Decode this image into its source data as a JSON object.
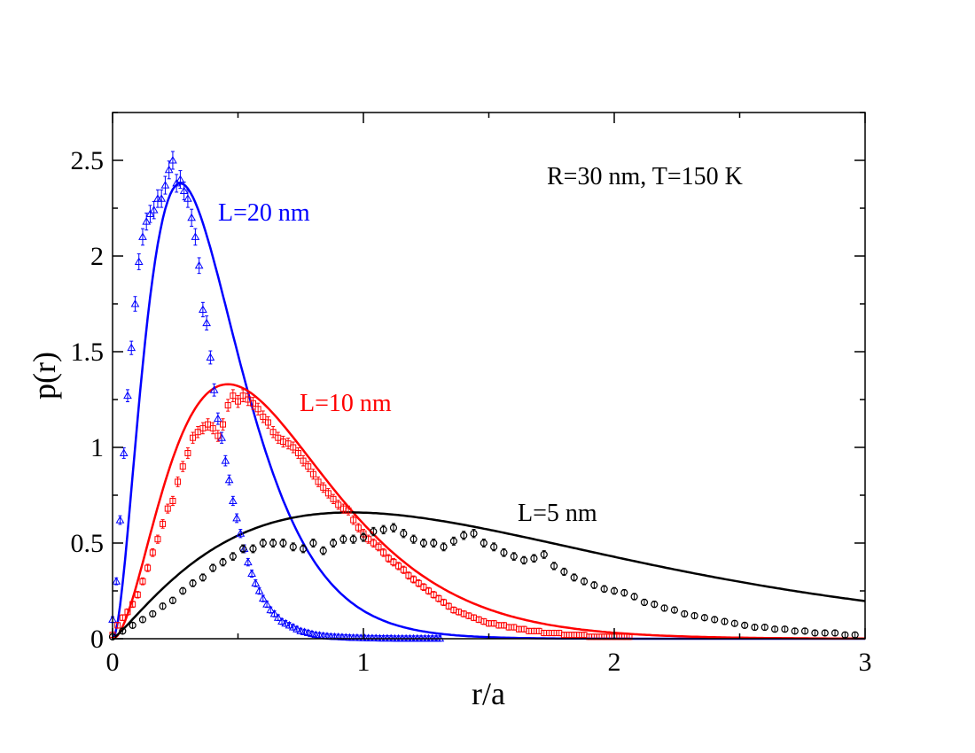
{
  "chart_data": {
    "type": "scatter",
    "title": "",
    "xlabel": "r/a",
    "ylabel": "p(r)",
    "xlim": [
      0,
      3
    ],
    "ylim": [
      0,
      2.75
    ],
    "x_ticks": [
      "0",
      "1",
      "2",
      "3"
    ],
    "y_ticks": [
      "0",
      "0.5",
      "1",
      "1.5",
      "2",
      "2.5"
    ],
    "grid": false,
    "legend": "none",
    "annotations": {
      "conditions": "R=30 nm, T=150 K",
      "l20": "L=20 nm",
      "l10": "L=10 nm",
      "l5": "L=5 nm"
    },
    "series": [
      {
        "name": "L=20 nm",
        "color": "#0000ff",
        "marker": "triangle",
        "fit_peak": [
          0.27,
          2.38
        ],
        "fit_n": 2.0,
        "x": [
          0.0,
          0.015,
          0.03,
          0.045,
          0.06,
          0.075,
          0.09,
          0.105,
          0.12,
          0.135,
          0.15,
          0.165,
          0.18,
          0.195,
          0.21,
          0.225,
          0.24,
          0.255,
          0.27,
          0.285,
          0.3,
          0.315,
          0.33,
          0.345,
          0.36,
          0.375,
          0.39,
          0.405,
          0.42,
          0.435,
          0.45,
          0.465,
          0.48,
          0.495,
          0.51,
          0.525,
          0.54,
          0.555,
          0.57,
          0.585,
          0.6,
          0.615,
          0.63,
          0.645,
          0.66,
          0.675,
          0.69,
          0.705,
          0.72,
          0.735,
          0.75,
          0.765,
          0.78,
          0.795,
          0.81,
          0.825,
          0.84,
          0.855,
          0.87,
          0.885,
          0.9,
          0.915,
          0.93,
          0.945,
          0.96,
          0.975,
          0.99,
          1.005,
          1.02,
          1.035,
          1.05,
          1.065,
          1.08,
          1.095,
          1.11,
          1.125,
          1.14,
          1.155,
          1.17,
          1.185,
          1.2,
          1.215,
          1.23,
          1.245,
          1.26,
          1.275,
          1.29,
          1.305
        ],
        "y": [
          0.1,
          0.3,
          0.62,
          0.97,
          1.27,
          1.52,
          1.75,
          1.97,
          2.1,
          2.18,
          2.22,
          2.24,
          2.3,
          2.3,
          2.37,
          2.45,
          2.5,
          2.38,
          2.4,
          2.34,
          2.3,
          2.2,
          2.1,
          1.95,
          1.72,
          1.65,
          1.47,
          1.3,
          1.15,
          1.05,
          0.93,
          0.83,
          0.72,
          0.63,
          0.55,
          0.47,
          0.4,
          0.34,
          0.29,
          0.25,
          0.21,
          0.18,
          0.15,
          0.13,
          0.11,
          0.09,
          0.08,
          0.07,
          0.06,
          0.05,
          0.04,
          0.035,
          0.03,
          0.025,
          0.02,
          0.018,
          0.015,
          0.013,
          0.011,
          0.01,
          0.009,
          0.008,
          0.007,
          0.006,
          0.005,
          0.005,
          0.004,
          0.004,
          0.003,
          0.003,
          0.003,
          0.002,
          0.002,
          0.002,
          0.002,
          0.001,
          0.001,
          0.001,
          0.001,
          0.001,
          0.001,
          0.001,
          0.001,
          0.001,
          0.001,
          0.001,
          0.001,
          0.001
        ]
      },
      {
        "name": "L=10 nm",
        "color": "#ff0000",
        "marker": "square",
        "fit_peak": [
          0.46,
          1.33
        ],
        "fit_n": 2.0,
        "x": [
          0.0,
          0.02,
          0.04,
          0.06,
          0.08,
          0.1,
          0.12,
          0.14,
          0.16,
          0.18,
          0.2,
          0.22,
          0.24,
          0.26,
          0.28,
          0.3,
          0.32,
          0.34,
          0.36,
          0.38,
          0.4,
          0.42,
          0.44,
          0.46,
          0.48,
          0.5,
          0.52,
          0.54,
          0.56,
          0.58,
          0.6,
          0.62,
          0.64,
          0.66,
          0.68,
          0.7,
          0.72,
          0.74,
          0.76,
          0.78,
          0.8,
          0.82,
          0.84,
          0.86,
          0.88,
          0.9,
          0.92,
          0.94,
          0.96,
          0.98,
          1.0,
          1.02,
          1.04,
          1.06,
          1.08,
          1.1,
          1.12,
          1.14,
          1.16,
          1.18,
          1.2,
          1.22,
          1.24,
          1.26,
          1.28,
          1.3,
          1.32,
          1.34,
          1.36,
          1.38,
          1.4,
          1.42,
          1.44,
          1.46,
          1.48,
          1.5,
          1.52,
          1.54,
          1.56,
          1.58,
          1.6,
          1.62,
          1.64,
          1.66,
          1.68,
          1.7,
          1.72,
          1.74,
          1.76,
          1.78,
          1.8,
          1.82,
          1.84,
          1.86,
          1.88,
          1.9,
          1.92,
          1.94,
          1.96,
          1.98,
          2.0,
          2.02,
          2.04,
          2.06
        ],
        "y": [
          0.02,
          0.07,
          0.11,
          0.14,
          0.18,
          0.23,
          0.3,
          0.37,
          0.45,
          0.52,
          0.6,
          0.68,
          0.72,
          0.82,
          0.9,
          0.97,
          1.05,
          1.08,
          1.1,
          1.12,
          1.1,
          1.06,
          1.12,
          1.22,
          1.27,
          1.24,
          1.27,
          1.25,
          1.23,
          1.2,
          1.16,
          1.13,
          1.08,
          1.05,
          1.03,
          1.02,
          1.0,
          0.97,
          0.93,
          0.9,
          0.86,
          0.82,
          0.79,
          0.76,
          0.73,
          0.7,
          0.68,
          0.67,
          0.62,
          0.58,
          0.55,
          0.52,
          0.5,
          0.48,
          0.45,
          0.42,
          0.4,
          0.38,
          0.36,
          0.33,
          0.31,
          0.29,
          0.27,
          0.25,
          0.23,
          0.21,
          0.19,
          0.17,
          0.15,
          0.14,
          0.13,
          0.12,
          0.11,
          0.1,
          0.09,
          0.08,
          0.08,
          0.07,
          0.07,
          0.06,
          0.06,
          0.05,
          0.05,
          0.04,
          0.04,
          0.04,
          0.03,
          0.03,
          0.03,
          0.03,
          0.02,
          0.02,
          0.02,
          0.02,
          0.02,
          0.01,
          0.01,
          0.01,
          0.01,
          0.01,
          0.01,
          0.01,
          0.01,
          0.01
        ]
      },
      {
        "name": "L=5 nm",
        "color": "#000000",
        "marker": "circle",
        "fit_peak": [
          0.95,
          0.66
        ],
        "fit_n": 1.2,
        "x": [
          0.0,
          0.04,
          0.08,
          0.12,
          0.16,
          0.2,
          0.24,
          0.28,
          0.32,
          0.36,
          0.4,
          0.44,
          0.48,
          0.52,
          0.56,
          0.6,
          0.64,
          0.68,
          0.72,
          0.76,
          0.8,
          0.84,
          0.88,
          0.92,
          0.96,
          1.0,
          1.04,
          1.08,
          1.12,
          1.16,
          1.2,
          1.24,
          1.28,
          1.32,
          1.36,
          1.4,
          1.44,
          1.48,
          1.52,
          1.56,
          1.6,
          1.64,
          1.68,
          1.72,
          1.76,
          1.8,
          1.84,
          1.88,
          1.92,
          1.96,
          2.0,
          2.04,
          2.08,
          2.12,
          2.16,
          2.2,
          2.24,
          2.28,
          2.32,
          2.36,
          2.4,
          2.44,
          2.48,
          2.52,
          2.56,
          2.6,
          2.64,
          2.68,
          2.72,
          2.76,
          2.8,
          2.84,
          2.88,
          2.92,
          2.96
        ],
        "y": [
          0.01,
          0.04,
          0.07,
          0.1,
          0.13,
          0.17,
          0.2,
          0.25,
          0.29,
          0.32,
          0.37,
          0.4,
          0.43,
          0.47,
          0.47,
          0.5,
          0.5,
          0.5,
          0.48,
          0.47,
          0.5,
          0.46,
          0.5,
          0.52,
          0.52,
          0.53,
          0.56,
          0.57,
          0.58,
          0.55,
          0.52,
          0.5,
          0.5,
          0.48,
          0.51,
          0.54,
          0.55,
          0.5,
          0.48,
          0.45,
          0.43,
          0.41,
          0.42,
          0.44,
          0.38,
          0.35,
          0.32,
          0.3,
          0.28,
          0.26,
          0.25,
          0.24,
          0.22,
          0.19,
          0.18,
          0.16,
          0.15,
          0.13,
          0.12,
          0.11,
          0.1,
          0.09,
          0.08,
          0.07,
          0.06,
          0.06,
          0.05,
          0.05,
          0.04,
          0.04,
          0.03,
          0.03,
          0.03,
          0.02,
          0.02
        ]
      }
    ]
  }
}
